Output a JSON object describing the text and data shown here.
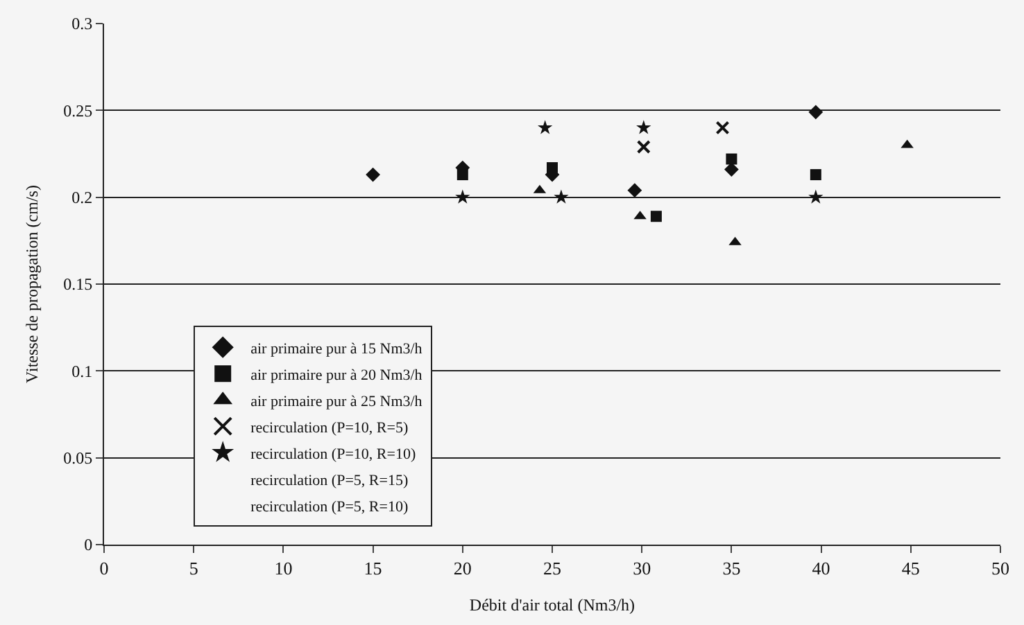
{
  "chart_data": {
    "type": "scatter",
    "xlabel": "Débit d'air total (Nm3/h)",
    "ylabel": "Vitesse de propagation (cm/s)",
    "xlim": [
      0,
      50
    ],
    "xticks": [
      0,
      5,
      10,
      15,
      20,
      25,
      30,
      35,
      40,
      45,
      50
    ],
    "ylim": [
      0,
      0.3
    ],
    "yticks": [
      0,
      0.05,
      0.1,
      0.15,
      0.2,
      0.25,
      0.3
    ],
    "grid": "y",
    "legend": "left",
    "series": [
      {
        "name": "air primaire pur à 15 Nm3/h",
        "color": "#111111",
        "marker": "diamond",
        "x": [
          15,
          20,
          25,
          29.6,
          35,
          39.7
        ],
        "values": [
          0.213,
          0.217,
          0.213,
          0.204,
          0.216,
          0.249
        ]
      },
      {
        "name": "air primaire pur à 20 Nm3/h",
        "color": "#111111",
        "marker": "square",
        "x": [
          20,
          25,
          30.8,
          35,
          39.7
        ],
        "values": [
          0.213,
          0.217,
          0.189,
          0.222,
          0.213
        ]
      },
      {
        "name": "air primaire pur à 25 Nm3/h",
        "color": "#111111",
        "marker": "triangle",
        "x": [
          24.3,
          29.9,
          35.2,
          44.8
        ],
        "values": [
          0.204,
          0.189,
          0.174,
          0.23
        ]
      },
      {
        "name": "recirculation (P=10, R=5)",
        "color": "#111111",
        "marker": "cross",
        "x": [
          30.1,
          34.5
        ],
        "values": [
          0.229,
          0.24
        ]
      },
      {
        "name": "recirculation (P=10, R=10)",
        "color": "#111111",
        "marker": "star",
        "x": [
          20,
          25.5,
          24.6,
          30.1,
          39.7
        ],
        "values": [
          0.2,
          0.2,
          0.24,
          0.24,
          0.2
        ]
      },
      {
        "name": "recirculation (P=5, R=15)",
        "color": "#111111",
        "marker": "none"
      },
      {
        "name": "recirculation (P=5, R=10)",
        "color": "#111111",
        "marker": "none"
      }
    ]
  }
}
